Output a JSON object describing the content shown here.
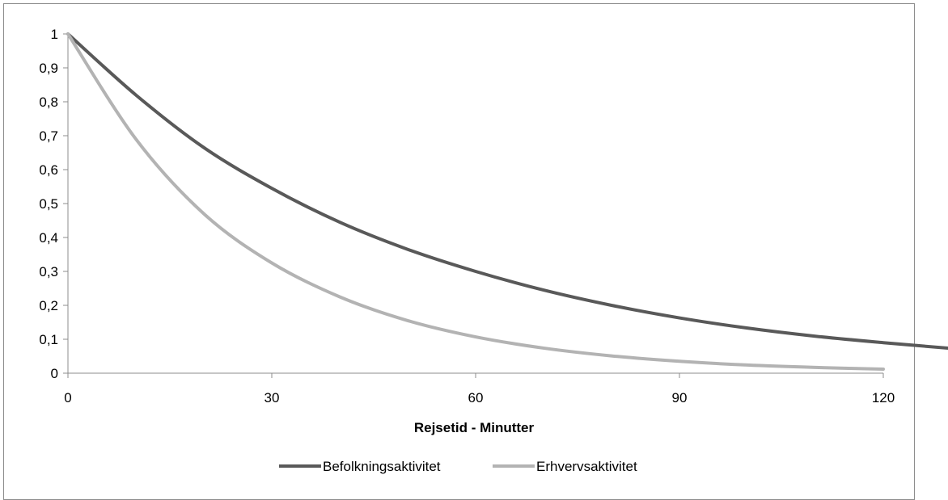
{
  "chart_data": {
    "type": "line",
    "title": "",
    "xlabel": "Rejsetid - Minutter",
    "ylabel": "",
    "xlim": [
      0,
      120
    ],
    "ylim": [
      0,
      1
    ],
    "x_ticks": [
      0,
      30,
      60,
      90,
      120
    ],
    "x_tick_labels": [
      "0",
      "30",
      "60",
      "90",
      "120"
    ],
    "y_ticks": [
      0,
      0.1,
      0.2,
      0.3,
      0.4,
      0.5,
      0.6,
      0.7,
      0.8,
      0.9,
      1
    ],
    "y_tick_labels": [
      "0",
      "0,1",
      "0,2",
      "0,3",
      "0,4",
      "0,5",
      "0,6",
      "0,7",
      "0,8",
      "0,9",
      "1"
    ],
    "grid": false,
    "legend_position": "bottom",
    "series": [
      {
        "name": "Befolkningsaktivitet",
        "color": "#595959",
        "x": [
          0,
          10,
          20,
          30,
          40,
          50,
          60,
          70,
          80,
          90,
          100,
          110,
          120,
          130
        ],
        "values": [
          1.0,
          0.82,
          0.665,
          0.545,
          0.445,
          0.365,
          0.3,
          0.245,
          0.2,
          0.163,
          0.133,
          0.109,
          0.09,
          0.073
        ]
      },
      {
        "name": "Erhvervsaktivitet",
        "color": "#b3b3b3",
        "x": [
          0,
          10,
          20,
          30,
          40,
          50,
          60,
          70,
          80,
          90,
          100,
          110,
          120
        ],
        "values": [
          1.0,
          0.69,
          0.47,
          0.325,
          0.225,
          0.155,
          0.107,
          0.074,
          0.051,
          0.035,
          0.024,
          0.017,
          0.012
        ]
      }
    ]
  }
}
